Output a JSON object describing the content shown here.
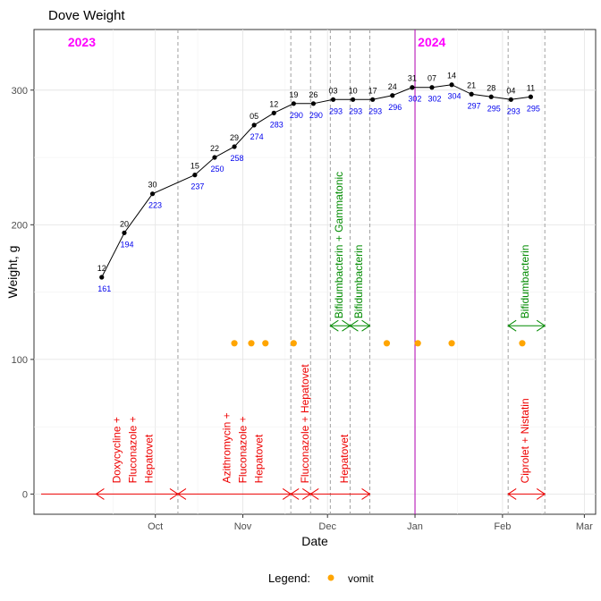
{
  "chart_data": {
    "type": "line",
    "title": "Dove Weight",
    "xlabel": "Date",
    "ylabel": "Weight, g",
    "xlim": [
      "2023-08-19",
      "2024-03-05"
    ],
    "ylim": [
      -15,
      345
    ],
    "y_ticks": [
      0,
      100,
      200,
      300
    ],
    "x_ticks": [
      {
        "date": "2023-10-01",
        "label": "Oct"
      },
      {
        "date": "2023-11-01",
        "label": "Nov"
      },
      {
        "date": "2023-12-01",
        "label": "Dec"
      },
      {
        "date": "2024-01-01",
        "label": "Jan"
      },
      {
        "date": "2024-02-01",
        "label": "Feb"
      },
      {
        "date": "2024-03-01",
        "label": "Mar"
      }
    ],
    "grid": true,
    "year_markers": [
      {
        "date": "2023-08-31",
        "label": "2023"
      },
      {
        "date": "2024-01-02",
        "label": "2024"
      }
    ],
    "year_divider": "2024-01-01",
    "weights": [
      {
        "date": "2023-09-12",
        "day": "12",
        "value": 161
      },
      {
        "date": "2023-09-20",
        "day": "20",
        "value": 194
      },
      {
        "date": "2023-09-30",
        "day": "30",
        "value": 223
      },
      {
        "date": "2023-10-15",
        "day": "15",
        "value": 237
      },
      {
        "date": "2023-10-22",
        "day": "22",
        "value": 250
      },
      {
        "date": "2023-10-29",
        "day": "29",
        "value": 258
      },
      {
        "date": "2023-11-05",
        "day": "05",
        "value": 274
      },
      {
        "date": "2023-11-12",
        "day": "12",
        "value": 283
      },
      {
        "date": "2023-11-19",
        "day": "19",
        "value": 290
      },
      {
        "date": "2023-11-26",
        "day": "26",
        "value": 290
      },
      {
        "date": "2023-12-03",
        "day": "03",
        "value": 293
      },
      {
        "date": "2023-12-10",
        "day": "10",
        "value": 293
      },
      {
        "date": "2023-12-17",
        "day": "17",
        "value": 293
      },
      {
        "date": "2023-12-24",
        "day": "24",
        "value": 296
      },
      {
        "date": "2023-12-31",
        "day": "31",
        "value": 302
      },
      {
        "date": "2024-01-07",
        "day": "07",
        "value": 302
      },
      {
        "date": "2024-01-14",
        "day": "14",
        "value": 304
      },
      {
        "date": "2024-01-21",
        "day": "21",
        "value": 297
      },
      {
        "date": "2024-01-28",
        "day": "28",
        "value": 295
      },
      {
        "date": "2024-02-04",
        "day": "04",
        "value": 293
      },
      {
        "date": "2024-02-11",
        "day": "11",
        "value": 295
      }
    ],
    "vomit": [
      {
        "date": "2023-10-29",
        "value": 112
      },
      {
        "date": "2023-11-04",
        "value": 112
      },
      {
        "date": "2023-11-09",
        "value": 112
      },
      {
        "date": "2023-11-19",
        "value": 112
      },
      {
        "date": "2023-12-22",
        "value": 112
      },
      {
        "date": "2024-01-02",
        "value": 112
      },
      {
        "date": "2024-01-14",
        "value": 112
      },
      {
        "date": "2024-02-08",
        "value": 112
      }
    ],
    "treatments": [
      {
        "start": "2023-09-10",
        "end": "2023-10-09",
        "y": 0,
        "color": "#ee0000",
        "label_date": "2023-09-23",
        "lines": [
          "Doxycycline +",
          "Fluconazole +",
          "Hepatovet"
        ]
      },
      {
        "start": "2023-10-09",
        "end": "2023-11-18",
        "y": 0,
        "color": "#ee0000",
        "label_date": "2023-11-01",
        "lines": [
          "Azithromycin +",
          "Fluconazole +",
          "Hepatovet"
        ]
      },
      {
        "start": "2023-11-18",
        "end": "2023-11-25",
        "y": 0,
        "color": "#ee0000",
        "label_date": "2023-11-23",
        "lines": [
          "Fluconazole + Hepatovet"
        ]
      },
      {
        "start": "2023-11-25",
        "end": "2023-12-16",
        "y": 0,
        "color": "#ee0000",
        "label_date": "2023-12-07",
        "lines": [
          "Hepatovet"
        ]
      },
      {
        "start": "2024-02-03",
        "end": "2024-02-16",
        "y": 0,
        "color": "#ee0000",
        "label_date": "2024-02-09",
        "lines": [
          "Ciprolet + Nistatin"
        ]
      },
      {
        "start": "2023-12-02",
        "end": "2023-12-09",
        "y": 125,
        "color": "#008b00",
        "label_date": "2023-12-05",
        "lines": [
          "Bifidumbacterin + Gammatonic"
        ]
      },
      {
        "start": "2023-12-09",
        "end": "2023-12-16",
        "y": 125,
        "color": "#008b00",
        "label_date": "2023-12-12",
        "lines": [
          "Bifidumbacterin"
        ]
      },
      {
        "start": "2024-02-03",
        "end": "2024-02-16",
        "y": 125,
        "color": "#008b00",
        "label_date": "2024-02-09",
        "lines": [
          "Bifidumbacterin"
        ]
      }
    ],
    "dashed_lines": [
      "2023-10-09",
      "2023-11-18",
      "2023-11-25",
      "2023-12-02",
      "2023-12-09",
      "2023-12-16",
      "2024-02-03",
      "2024-02-16"
    ],
    "legend": {
      "title": "Legend:",
      "items": [
        {
          "label": "vomit",
          "color": "#ffa500"
        }
      ],
      "position": "bottom"
    },
    "colors": {
      "weight_label": "#0000ee",
      "year_marker": "#ff00ff",
      "divider": "#b000b0",
      "point": "#000000"
    }
  }
}
